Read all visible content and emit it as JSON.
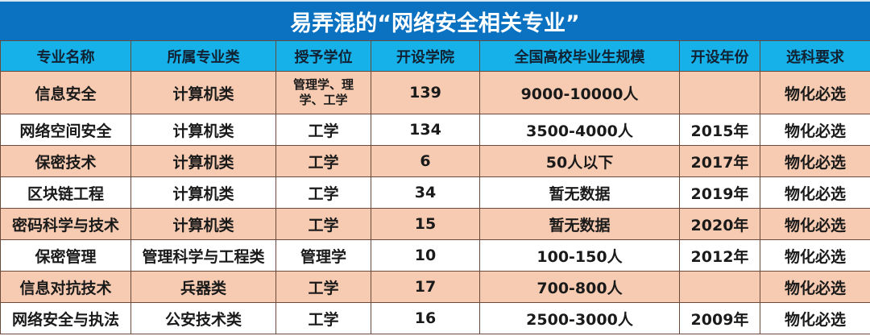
{
  "title": "易弄混的“网络安全相关专业”",
  "colors": {
    "title_bg": "#0b71c1",
    "header_bg": "#17b1ea",
    "highlight_row": "#f7cbb1"
  },
  "headers": [
    "专业名称",
    "所属专业类",
    "授予学位",
    "开设学院",
    "全国高校毕业生规模",
    "开设年份",
    "选科要求"
  ],
  "rows": [
    [
      "信息安全",
      "计算机类",
      "管理学、理学、工学",
      "139",
      "9000-10000人",
      "",
      "物化必选"
    ],
    [
      "网络空间安全",
      "计算机类",
      "工学",
      "134",
      "3500-4000人",
      "2015年",
      "物化必选"
    ],
    [
      "保密技术",
      "计算机类",
      "工学",
      "6",
      "50人以下",
      "2017年",
      "物化必选"
    ],
    [
      "区块链工程",
      "计算机类",
      "工学",
      "34",
      "暂无数据",
      "2019年",
      "物化必选"
    ],
    [
      "密码科学与技术",
      "计算机类",
      "工学",
      "15",
      "暂无数据",
      "2020年",
      "物化必选"
    ],
    [
      "保密管理",
      "管理科学与工程类",
      "管理学",
      "10",
      "100-150人",
      "2012年",
      "物化必选"
    ],
    [
      "信息对抗技术",
      "兵器类",
      "工学",
      "17",
      "700-800人",
      "",
      "物化必选"
    ],
    [
      "网络安全与执法",
      "公安技术类",
      "工学",
      "16",
      "2500-3000人",
      "2009年",
      "物化必选"
    ]
  ]
}
